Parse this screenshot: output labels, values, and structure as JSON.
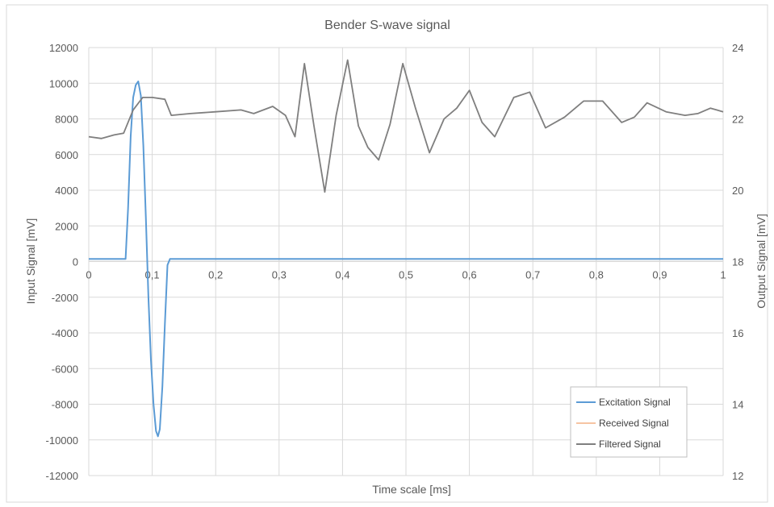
{
  "chart_data": {
    "type": "line",
    "title": "Bender S-wave signal",
    "xlabel": "Time scale [ms]",
    "ylabel_left": "Input Signal [mV]",
    "ylabel_right": "Output Signal [mV]",
    "xlim": [
      0,
      1
    ],
    "ylim_left": [
      -12000,
      12000
    ],
    "ylim_right": [
      12,
      24
    ],
    "x_ticks": [
      "0",
      "0,1",
      "0,2",
      "0,3",
      "0,4",
      "0,5",
      "0,6",
      "0,7",
      "0,8",
      "0,9",
      "1"
    ],
    "y_left_ticks": [
      "12000",
      "10000",
      "8000",
      "6000",
      "4000",
      "2000",
      "0",
      "-2000",
      "-4000",
      "-6000",
      "-8000",
      "-10000",
      "-12000"
    ],
    "y_right_ticks": [
      "24",
      "22",
      "20",
      "18",
      "16",
      "14",
      "12"
    ],
    "grid": true,
    "legend_position": "bottom-right",
    "series": [
      {
        "name": "Excitation Signal",
        "axis": "left",
        "color": "#5b9bd5",
        "x": [
          0,
          0.058,
          0.062,
          0.066,
          0.07,
          0.074,
          0.078,
          0.082,
          0.086,
          0.09,
          0.094,
          0.098,
          0.102,
          0.106,
          0.109,
          0.112,
          0.116,
          0.12,
          0.124,
          0.128,
          1.0
        ],
        "y": [
          150,
          150,
          3000,
          7000,
          9200,
          9900,
          10100,
          9300,
          6500,
          2500,
          -2000,
          -5500,
          -8000,
          -9500,
          -9800,
          -9400,
          -7000,
          -3500,
          -200,
          150,
          150
        ]
      },
      {
        "name": "Received Signal",
        "axis": "right",
        "color": "#f4b183",
        "x": [
          0,
          0.02,
          0.04,
          0.055,
          0.07,
          0.085,
          0.1,
          0.12,
          0.13,
          0.16,
          0.2,
          0.24,
          0.26,
          0.29,
          0.31,
          0.325,
          0.34,
          0.355,
          0.372,
          0.39,
          0.408,
          0.425,
          0.44,
          0.457,
          0.475,
          0.495,
          0.515,
          0.537,
          0.56,
          0.58,
          0.6,
          0.62,
          0.64,
          0.67,
          0.695,
          0.72,
          0.75,
          0.78,
          0.81,
          0.84,
          0.86,
          0.88,
          0.91,
          0.94,
          0.96,
          0.98,
          1.0
        ],
        "y": [
          21.5,
          21.45,
          21.55,
          21.6,
          22.25,
          22.6,
          22.6,
          22.55,
          22.1,
          22.15,
          22.2,
          22.25,
          22.15,
          22.35,
          22.1,
          21.5,
          23.55,
          21.8,
          19.95,
          22.1,
          23.65,
          21.8,
          21.2,
          20.85,
          21.85,
          23.55,
          22.3,
          21.05,
          22.0,
          22.3,
          22.8,
          21.9,
          21.5,
          22.6,
          22.75,
          21.75,
          22.05,
          22.5,
          22.5,
          21.9,
          22.05,
          22.45,
          22.2,
          22.1,
          22.15,
          22.3,
          22.2
        ]
      },
      {
        "name": "Filtered Signal",
        "axis": "right",
        "color": "#7f7f7f",
        "x": [
          0,
          0.02,
          0.04,
          0.055,
          0.07,
          0.085,
          0.1,
          0.12,
          0.13,
          0.16,
          0.2,
          0.24,
          0.26,
          0.29,
          0.31,
          0.325,
          0.34,
          0.355,
          0.372,
          0.39,
          0.408,
          0.425,
          0.44,
          0.457,
          0.475,
          0.495,
          0.515,
          0.537,
          0.56,
          0.58,
          0.6,
          0.62,
          0.64,
          0.67,
          0.695,
          0.72,
          0.75,
          0.78,
          0.81,
          0.84,
          0.86,
          0.88,
          0.91,
          0.94,
          0.96,
          0.98,
          1.0
        ],
        "y": [
          21.5,
          21.45,
          21.55,
          21.6,
          22.25,
          22.6,
          22.6,
          22.55,
          22.1,
          22.15,
          22.2,
          22.25,
          22.15,
          22.35,
          22.1,
          21.5,
          23.55,
          21.8,
          19.95,
          22.1,
          23.65,
          21.8,
          21.2,
          20.85,
          21.85,
          23.55,
          22.3,
          21.05,
          22.0,
          22.3,
          22.8,
          21.9,
          21.5,
          22.6,
          22.75,
          21.75,
          22.05,
          22.5,
          22.5,
          21.9,
          22.05,
          22.45,
          22.2,
          22.1,
          22.15,
          22.3,
          22.2
        ]
      }
    ]
  }
}
